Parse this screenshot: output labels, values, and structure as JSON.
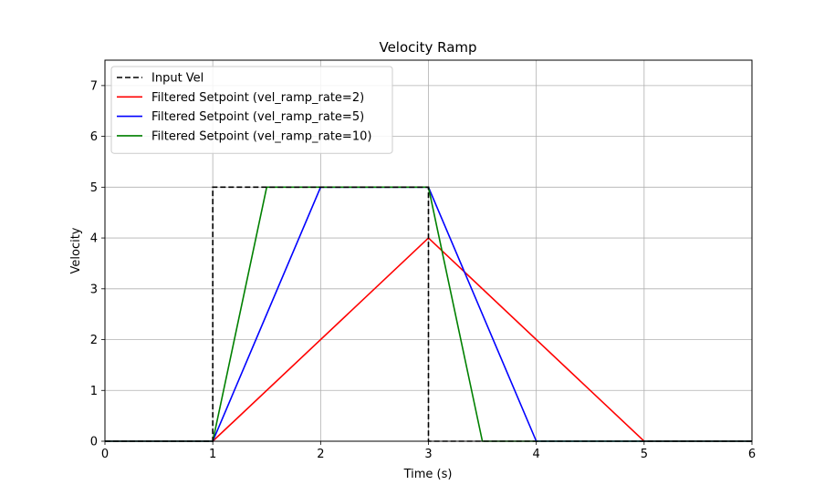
{
  "chart_data": {
    "type": "line",
    "title": "Velocity Ramp",
    "xlabel": "Time (s)",
    "ylabel": "Velocity",
    "xlim": [
      0,
      6
    ],
    "ylim": [
      0,
      7.5
    ],
    "xticks": [
      0,
      1,
      2,
      3,
      4,
      5,
      6
    ],
    "yticks": [
      0,
      1,
      2,
      3,
      4,
      5,
      6,
      7
    ],
    "xtick_labels": [
      "0",
      "1",
      "2",
      "3",
      "4",
      "5",
      "6"
    ],
    "ytick_labels": [
      "0",
      "1",
      "2",
      "3",
      "4",
      "5",
      "6",
      "7"
    ],
    "grid": true,
    "legend": "top-left",
    "series": [
      {
        "name": "Input Vel",
        "color": "#000000",
        "dashed": true,
        "x": [
          0,
          1,
          1,
          3,
          3,
          6
        ],
        "y": [
          0,
          0,
          5,
          5,
          0,
          0
        ]
      },
      {
        "name": "Filtered Setpoint (vel_ramp_rate=2)",
        "color": "#ff0000",
        "dashed": false,
        "x": [
          0,
          1,
          3,
          5,
          6
        ],
        "y": [
          0,
          0,
          4,
          0,
          0
        ]
      },
      {
        "name": "Filtered Setpoint (vel_ramp_rate=5)",
        "color": "#0000ff",
        "dashed": false,
        "x": [
          0,
          1,
          2,
          3,
          4,
          6
        ],
        "y": [
          0,
          0,
          5,
          5,
          0,
          0
        ]
      },
      {
        "name": "Filtered Setpoint (vel_ramp_rate=10)",
        "color": "#008000",
        "dashed": false,
        "x": [
          0,
          1,
          1.5,
          3,
          3.5,
          6
        ],
        "y": [
          0,
          0,
          5,
          5,
          0,
          0
        ]
      }
    ]
  }
}
